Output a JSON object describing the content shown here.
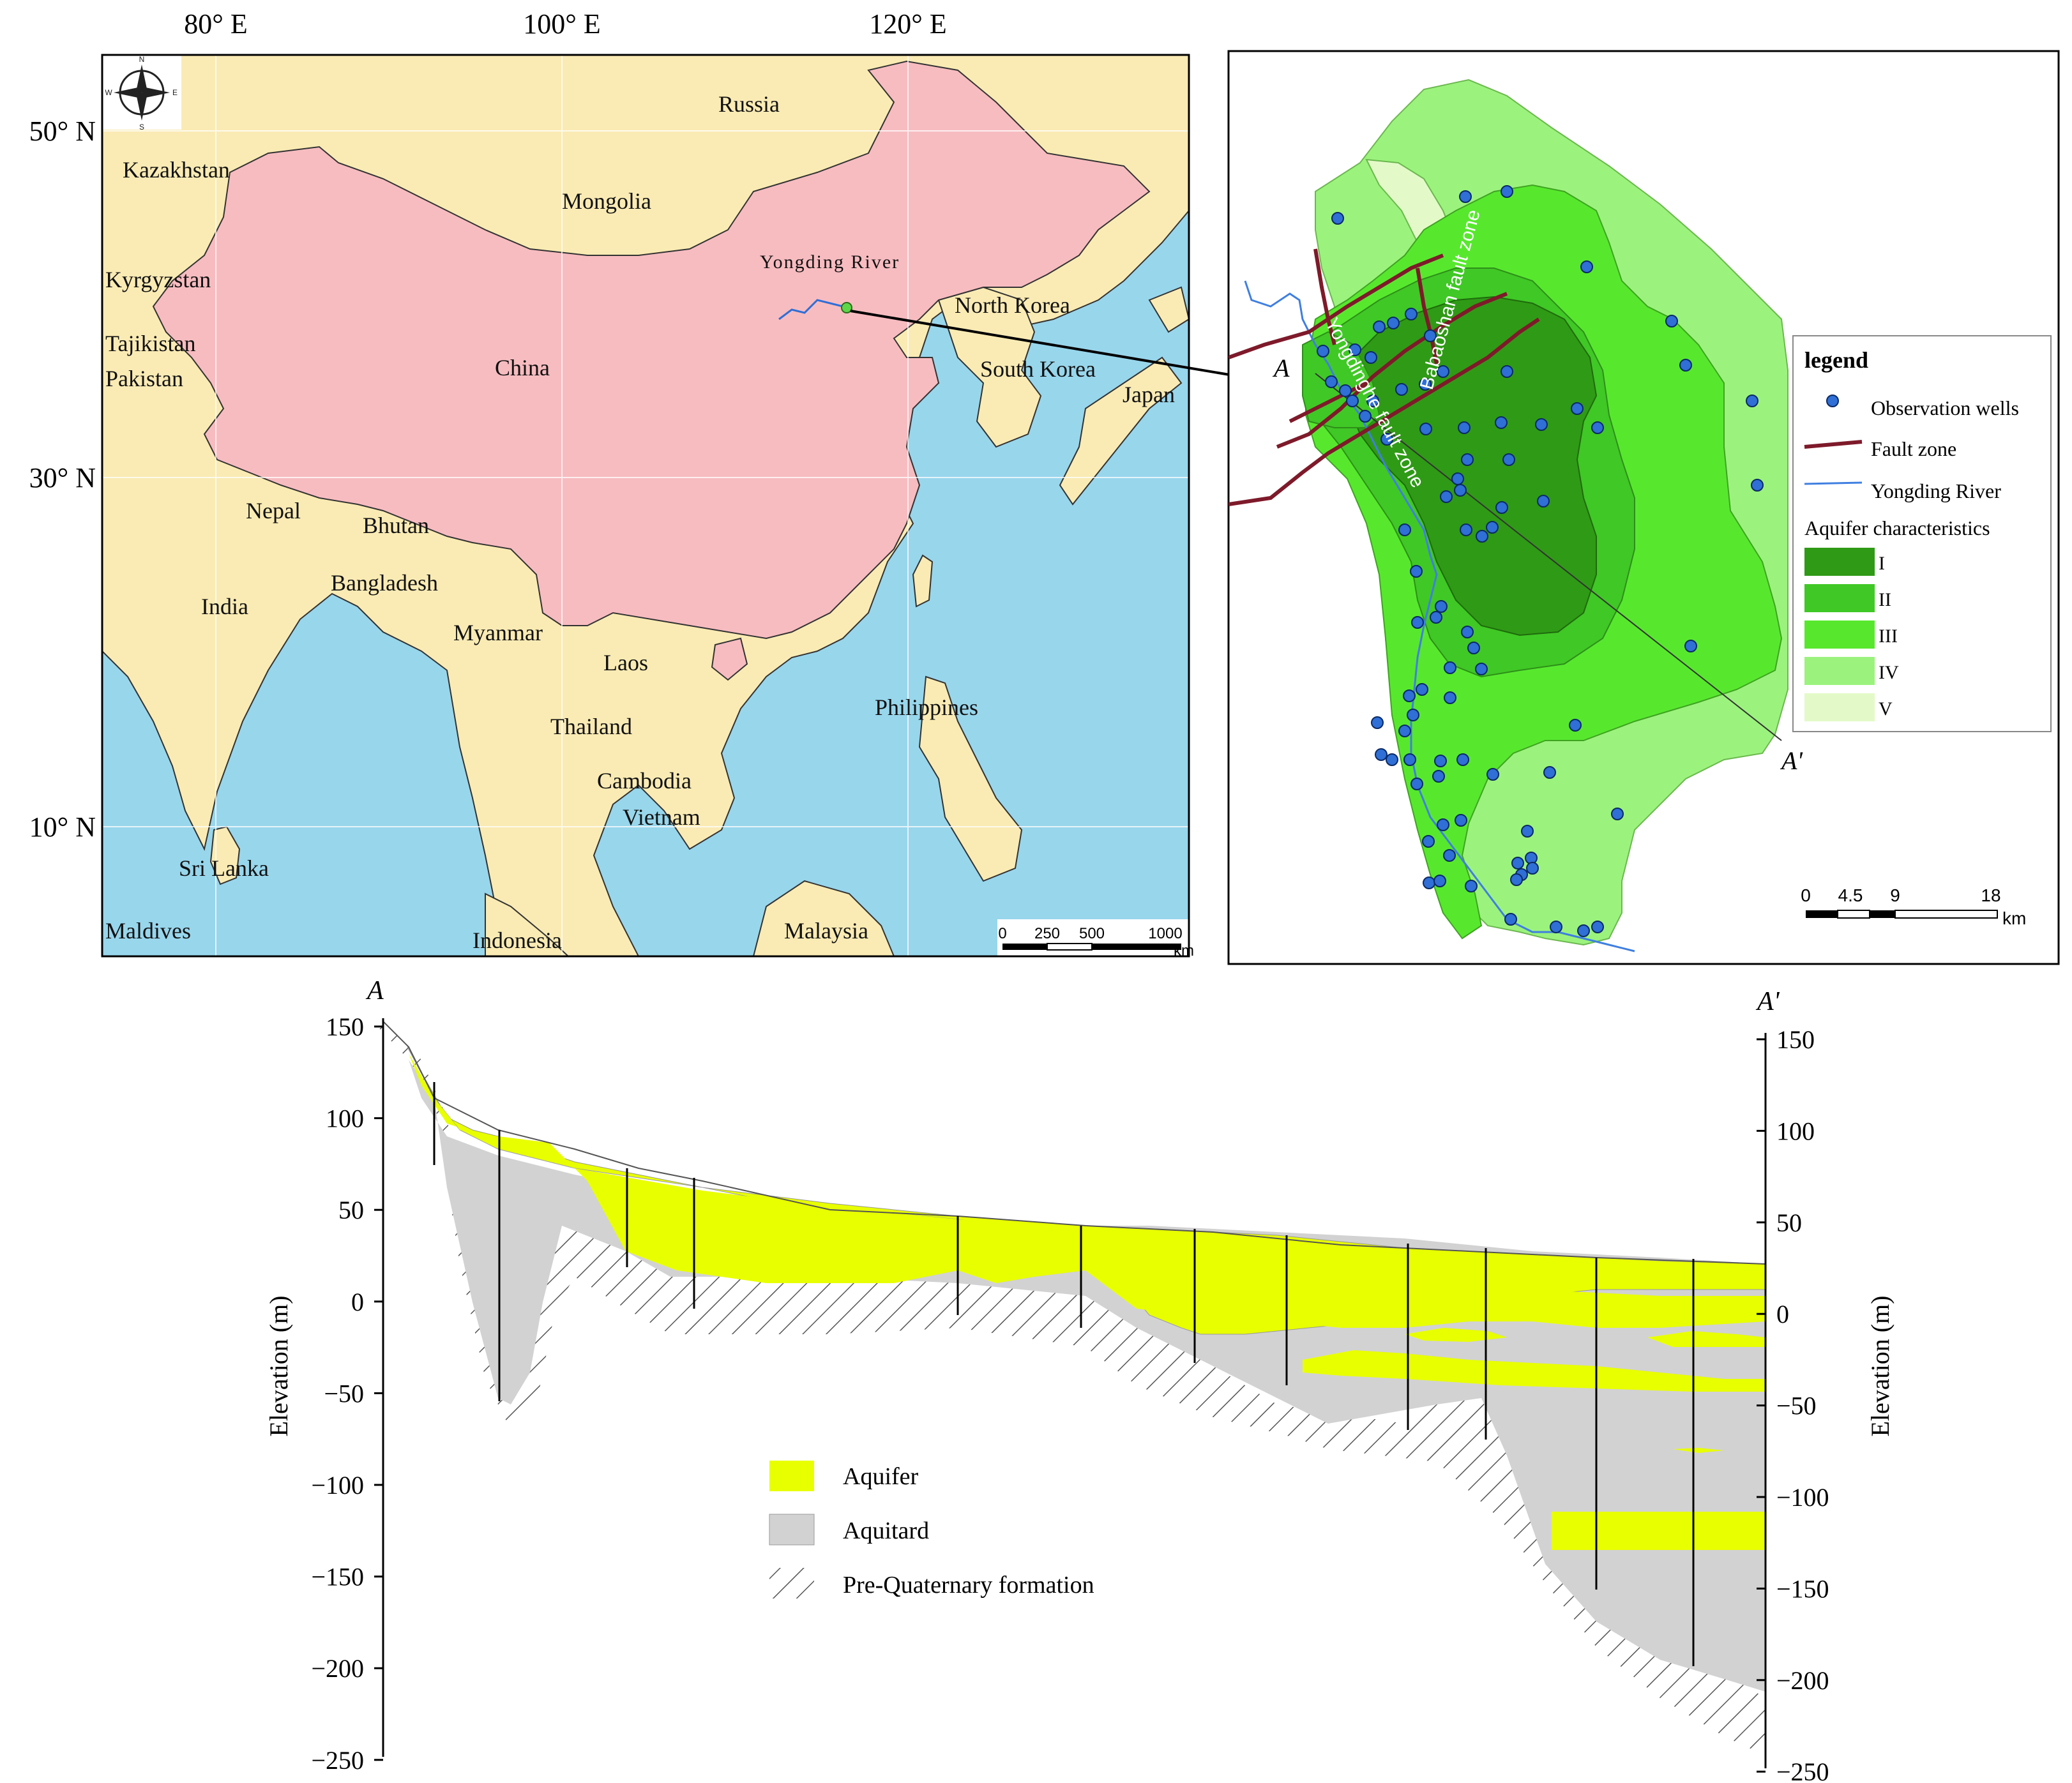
{
  "overview_map": {
    "lon_labels": [
      "80° E",
      "100° E",
      "120° E"
    ],
    "lat_labels": [
      "50° N",
      "30° N",
      "10° N"
    ],
    "countries": [
      {
        "key": "russia",
        "label": "Russia"
      },
      {
        "key": "kazakhstan",
        "label": "Kazakhstan"
      },
      {
        "key": "mongolia",
        "label": "Mongolia"
      },
      {
        "key": "kyrgyzstan",
        "label": "Kyrgyzstan"
      },
      {
        "key": "tajikistan",
        "label": "Tajikistan"
      },
      {
        "key": "pakistan",
        "label": "Pakistan"
      },
      {
        "key": "china",
        "label": "China"
      },
      {
        "key": "north_korea",
        "label": "North Korea"
      },
      {
        "key": "south_korea",
        "label": "South Korea"
      },
      {
        "key": "japan",
        "label": "Japan"
      },
      {
        "key": "nepal",
        "label": "Nepal"
      },
      {
        "key": "bhutan",
        "label": "Bhutan"
      },
      {
        "key": "bangladesh",
        "label": "Bangladesh"
      },
      {
        "key": "india",
        "label": "India"
      },
      {
        "key": "myanmar",
        "label": "Myanmar"
      },
      {
        "key": "laos",
        "label": "Laos"
      },
      {
        "key": "thailand",
        "label": "Thailand"
      },
      {
        "key": "cambodia",
        "label": "Cambodia"
      },
      {
        "key": "vietnam",
        "label": "Vietnam"
      },
      {
        "key": "philippines",
        "label": "Philippines"
      },
      {
        "key": "sri_lanka",
        "label": "Sri Lanka"
      },
      {
        "key": "maldives",
        "label": "Maldives"
      },
      {
        "key": "indonesia",
        "label": "Indonesia"
      },
      {
        "key": "malaysia",
        "label": "Malaysia"
      }
    ],
    "river_label": "Yongding River",
    "scale_ticks": [
      "0",
      "250",
      "500",
      "1000"
    ],
    "scale_unit": "km",
    "colors": {
      "ocean": "#98d6ec",
      "land": "#faebb4",
      "china": "#f7bcc0"
    }
  },
  "study_area": {
    "faults": [
      "Babaoshan fault zone",
      "Yongdinghe fault zone"
    ],
    "section_start": "A",
    "section_end": "A'",
    "legend": {
      "title": "legend",
      "wells": "Observation wells",
      "fault": "Fault zone",
      "river": "Yongding River",
      "aquifer_title": "Aquifer characteristics",
      "classes": [
        {
          "label": "I",
          "color": "#2f9a16"
        },
        {
          "label": "II",
          "color": "#40c826"
        },
        {
          "label": "III",
          "color": "#57e82e"
        },
        {
          "label": "IV",
          "color": "#9bf37d"
        },
        {
          "label": "V",
          "color": "#e3fac8"
        }
      ]
    },
    "scale_ticks": [
      "0",
      "4.5",
      "9",
      "18"
    ],
    "scale_unit": "km",
    "colors": {
      "well": "#2f6fd6",
      "fault": "#7e1a2a",
      "river": "#3f7fe0"
    }
  },
  "cross_section": {
    "start_label": "A",
    "end_label": "A'",
    "ylabel": "Elevation (m)",
    "ylim": [
      -250,
      150
    ],
    "left_ticks": [
      "150",
      "100",
      "50",
      "0",
      "−50",
      "−100",
      "−150",
      "−200",
      "−250"
    ],
    "right_ticks": [
      "150",
      "100",
      "50",
      "0",
      "−50",
      "−100",
      "−150",
      "−200",
      "−250"
    ],
    "legend": [
      {
        "label": "Aquifer",
        "color": "#e8ff00"
      },
      {
        "label": "Aquitard",
        "color": "#d2d2d2"
      },
      {
        "label": "Pre-Quaternary formation",
        "color": "hatch"
      }
    ]
  }
}
